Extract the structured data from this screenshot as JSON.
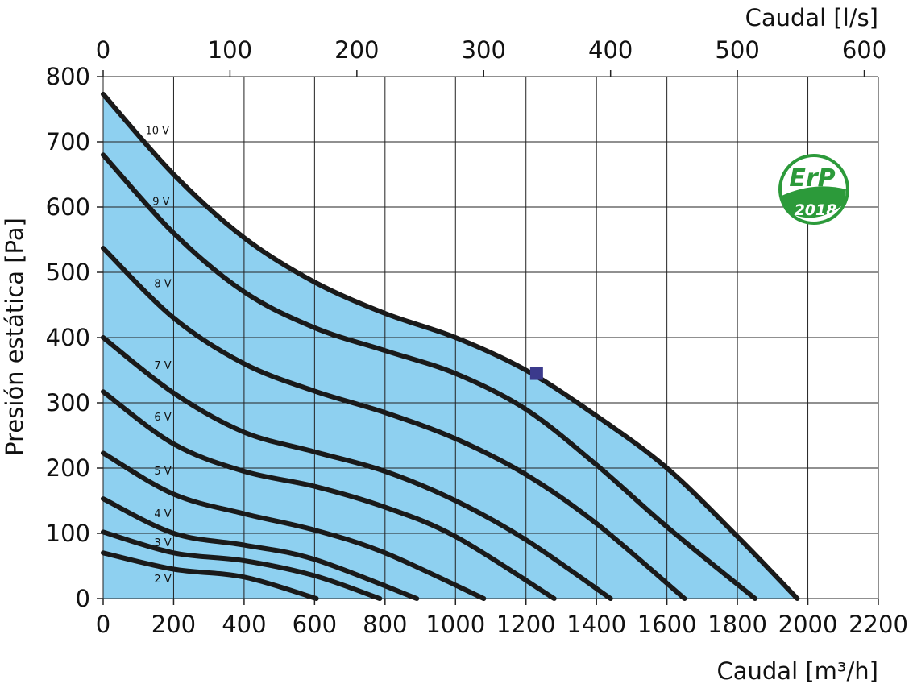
{
  "chart_data": {
    "type": "line",
    "xlabel_bottom": "Caudal [m³/h]",
    "xlabel_top": "Caudal [l/s]",
    "ylabel": "Presión estática [Pa]",
    "xlim": [
      0,
      2200
    ],
    "ylim": [
      0,
      800
    ],
    "xlim_top": [
      0,
      611.1
    ],
    "x_ticks": [
      "0",
      "200",
      "400",
      "600",
      "800",
      "1000",
      "1200",
      "1400",
      "1600",
      "1800",
      "2000",
      "2200"
    ],
    "x_top_ticks": [
      "0",
      "100",
      "200",
      "300",
      "400",
      "500",
      "600"
    ],
    "y_ticks": [
      "0",
      "100",
      "200",
      "300",
      "400",
      "500",
      "600",
      "700",
      "800"
    ],
    "grid": true,
    "fill_color": "#8ed0f0",
    "line_color": "#1a1a1a",
    "series": [
      {
        "name": "10 V",
        "x": [
          0,
          200,
          400,
          600,
          800,
          1000,
          1200,
          1400,
          1600,
          1800,
          1970
        ],
        "y": [
          773,
          650,
          553,
          485,
          437,
          400,
          350,
          280,
          200,
          95,
          0
        ]
      },
      {
        "name": "9 V",
        "x": [
          0,
          200,
          400,
          600,
          800,
          1000,
          1200,
          1400,
          1600,
          1850
        ],
        "y": [
          680,
          560,
          470,
          415,
          380,
          345,
          290,
          205,
          110,
          0
        ]
      },
      {
        "name": "8 V",
        "x": [
          0,
          200,
          400,
          600,
          800,
          1000,
          1200,
          1400,
          1650
        ],
        "y": [
          537,
          430,
          360,
          318,
          285,
          245,
          190,
          115,
          0
        ]
      },
      {
        "name": "7 V",
        "x": [
          0,
          200,
          400,
          600,
          800,
          1000,
          1200,
          1440
        ],
        "y": [
          400,
          315,
          255,
          225,
          195,
          150,
          90,
          0
        ]
      },
      {
        "name": "6 V",
        "x": [
          0,
          200,
          400,
          600,
          800,
          1000,
          1280
        ],
        "y": [
          317,
          237,
          195,
          172,
          140,
          95,
          0
        ]
      },
      {
        "name": "5 V",
        "x": [
          0,
          200,
          400,
          600,
          800,
          1080
        ],
        "y": [
          223,
          160,
          130,
          105,
          70,
          0
        ]
      },
      {
        "name": "4 V",
        "x": [
          0,
          200,
          400,
          600,
          890
        ],
        "y": [
          153,
          100,
          82,
          60,
          0
        ]
      },
      {
        "name": "3 V",
        "x": [
          0,
          200,
          400,
          600,
          785
        ],
        "y": [
          102,
          70,
          58,
          35,
          0
        ]
      },
      {
        "name": "2 V",
        "x": [
          0,
          200,
          400,
          605
        ],
        "y": [
          70,
          45,
          33,
          0
        ]
      }
    ],
    "label_positions": [
      {
        "name": "10 V",
        "x": 120,
        "y": 712
      },
      {
        "name": "9 V",
        "x": 140,
        "y": 603
      },
      {
        "name": "8 V",
        "x": 145,
        "y": 477
      },
      {
        "name": "7 V",
        "x": 145,
        "y": 352
      },
      {
        "name": "6 V",
        "x": 145,
        "y": 273
      },
      {
        "name": "5 V",
        "x": 145,
        "y": 190
      },
      {
        "name": "4 V",
        "x": 145,
        "y": 125
      },
      {
        "name": "3 V",
        "x": 145,
        "y": 80
      },
      {
        "name": "2 V",
        "x": 145,
        "y": 25
      }
    ],
    "marker": {
      "x": 1230,
      "y": 345,
      "color": "#3b3a8c"
    }
  },
  "badge": {
    "line1": "ErP",
    "line2": "2018",
    "color": "#2c9a3a"
  }
}
